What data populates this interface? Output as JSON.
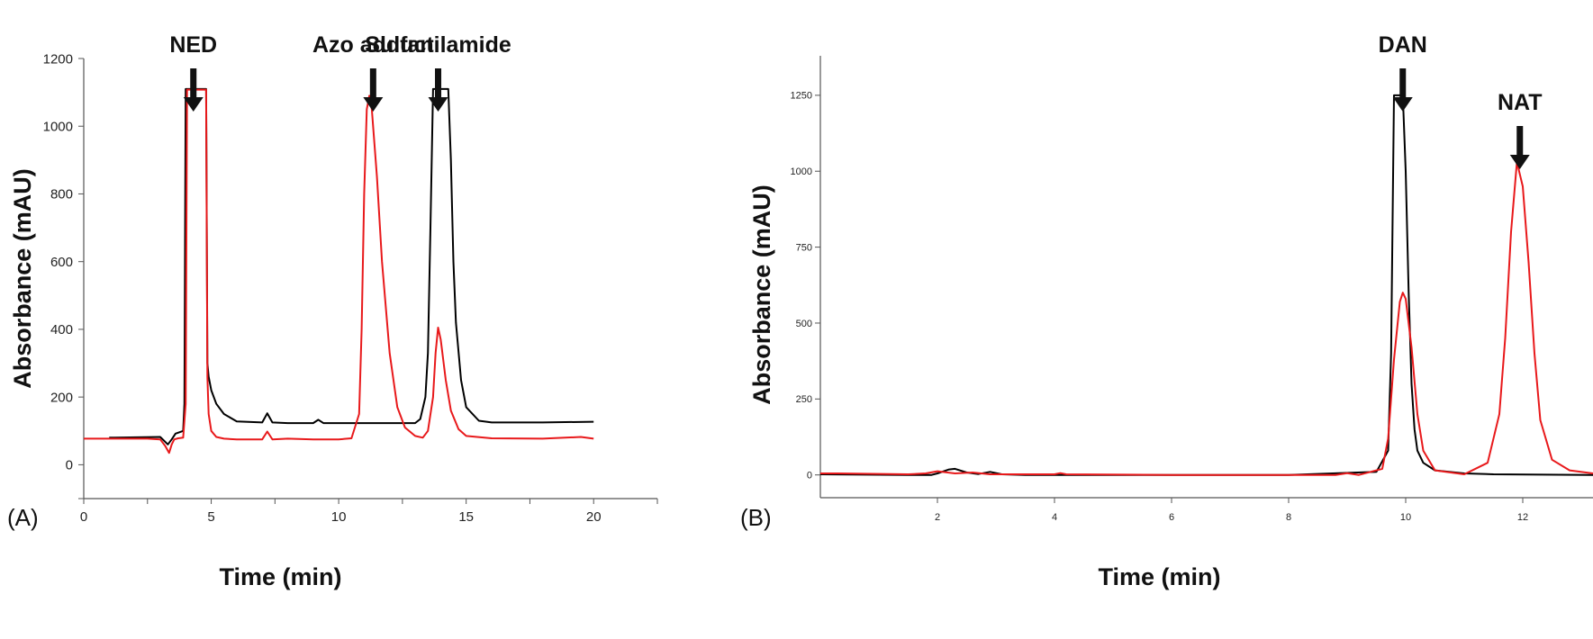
{
  "chart_data": [
    {
      "panel_label": "(A)",
      "type": "line",
      "xlabel": "Time (min)",
      "ylabel": "Absorbance  (mAU)",
      "xlim": [
        0,
        22.5
      ],
      "ylim": [
        -100,
        1200
      ],
      "xticks": [
        0,
        5,
        10,
        15,
        20
      ],
      "yticks": [
        0,
        200,
        400,
        600,
        800,
        1000,
        1200
      ],
      "grid": false,
      "series": [
        {
          "color": "#000000",
          "x": [
            1.0,
            3.0,
            3.3,
            3.45,
            3.6,
            3.9,
            3.95,
            4.0,
            4.05,
            4.3,
            4.8,
            4.85,
            4.9,
            5.0,
            5.2,
            5.5,
            6.0,
            7.0,
            7.2,
            7.4,
            8.0,
            9.0,
            9.2,
            9.4,
            10.0,
            11.0,
            12.0,
            13.0,
            13.2,
            13.4,
            13.5,
            13.6,
            13.7,
            14.3,
            14.4,
            14.5,
            14.6,
            14.8,
            15.0,
            15.5,
            16.0,
            18.0,
            20.0
          ],
          "y": [
            80,
            82,
            60,
            75,
            92,
            100,
            180,
            1110,
            1110,
            1110,
            1110,
            300,
            260,
            220,
            180,
            150,
            128,
            125,
            152,
            125,
            123,
            123,
            133,
            123,
            123,
            123,
            123,
            123,
            135,
            200,
            330,
            700,
            1110,
            1110,
            900,
            600,
            420,
            250,
            170,
            130,
            125,
            125,
            127
          ]
        },
        {
          "color": "#e8191b",
          "x": [
            0.0,
            1.0,
            2.5,
            3.0,
            3.2,
            3.35,
            3.45,
            3.55,
            3.7,
            3.9,
            4.0,
            4.05,
            4.1,
            4.4,
            4.8,
            4.85,
            4.9,
            5.0,
            5.2,
            5.5,
            6.0,
            7.0,
            7.2,
            7.4,
            8.0,
            9.0,
            10.0,
            10.5,
            10.8,
            10.9,
            11.0,
            11.1,
            11.2,
            11.3,
            11.5,
            11.7,
            12.0,
            12.3,
            12.6,
            13.0,
            13.3,
            13.5,
            13.7,
            13.8,
            13.9,
            14.0,
            14.2,
            14.4,
            14.7,
            15.0,
            16.0,
            18.0,
            19.5,
            20.0
          ],
          "y": [
            77,
            77,
            77,
            75,
            55,
            35,
            60,
            75,
            78,
            80,
            180,
            1108,
            1108,
            1108,
            1108,
            260,
            150,
            100,
            82,
            77,
            75,
            75,
            98,
            75,
            77,
            75,
            75,
            78,
            150,
            400,
            800,
            1050,
            1090,
            1050,
            850,
            600,
            330,
            170,
            110,
            85,
            80,
            100,
            200,
            330,
            405,
            370,
            250,
            160,
            105,
            85,
            78,
            77,
            82,
            77
          ]
        }
      ],
      "annotations": [
        "NED",
        "Azo adduct",
        "Sulfanilamide"
      ]
    },
    {
      "panel_label": "(B)",
      "type": "line",
      "xlabel": "Time (min)",
      "ylabel": "Absorbance  (mAU)",
      "xlim": [
        0,
        13.2
      ],
      "ylim": [
        -75,
        1380
      ],
      "xticks": [
        2,
        4,
        6,
        8,
        10,
        12
      ],
      "yticks": [
        0,
        250,
        500,
        750,
        1000,
        1250
      ],
      "grid": false,
      "series": [
        {
          "color": "#000000",
          "x": [
            0.0,
            1.5,
            1.9,
            2.0,
            2.2,
            2.3,
            2.5,
            2.7,
            2.9,
            3.1,
            3.5,
            5.0,
            8.0,
            9.5,
            9.7,
            9.75,
            9.8,
            9.85,
            9.9,
            9.95,
            10.0,
            10.05,
            10.1,
            10.15,
            10.2,
            10.3,
            10.5,
            11.0,
            11.5,
            13.2
          ],
          "y": [
            2,
            0,
            0,
            5,
            18,
            20,
            8,
            3,
            10,
            2,
            0,
            0,
            0,
            10,
            80,
            400,
            1250,
            1250,
            1250,
            1250,
            1000,
            600,
            300,
            150,
            80,
            40,
            15,
            5,
            2,
            0
          ]
        },
        {
          "color": "#e8191b",
          "x": [
            0.0,
            0.3,
            1.5,
            1.8,
            2.0,
            2.3,
            2.6,
            2.9,
            3.2,
            4.0,
            4.1,
            4.2,
            6.0,
            8.8,
            9.0,
            9.2,
            9.6,
            9.7,
            9.8,
            9.9,
            9.95,
            10.0,
            10.1,
            10.2,
            10.3,
            10.5,
            11.0,
            11.4,
            11.6,
            11.7,
            11.8,
            11.9,
            12.0,
            12.1,
            12.2,
            12.3,
            12.5,
            12.8,
            13.2
          ],
          "y": [
            5,
            5,
            2,
            5,
            12,
            5,
            8,
            2,
            2,
            2,
            6,
            2,
            0,
            0,
            6,
            0,
            20,
            120,
            380,
            570,
            600,
            580,
            420,
            200,
            80,
            15,
            2,
            40,
            200,
            450,
            800,
            1030,
            950,
            700,
            400,
            180,
            50,
            15,
            5
          ]
        }
      ],
      "annotations": [
        "DAN",
        "NAT"
      ]
    }
  ]
}
